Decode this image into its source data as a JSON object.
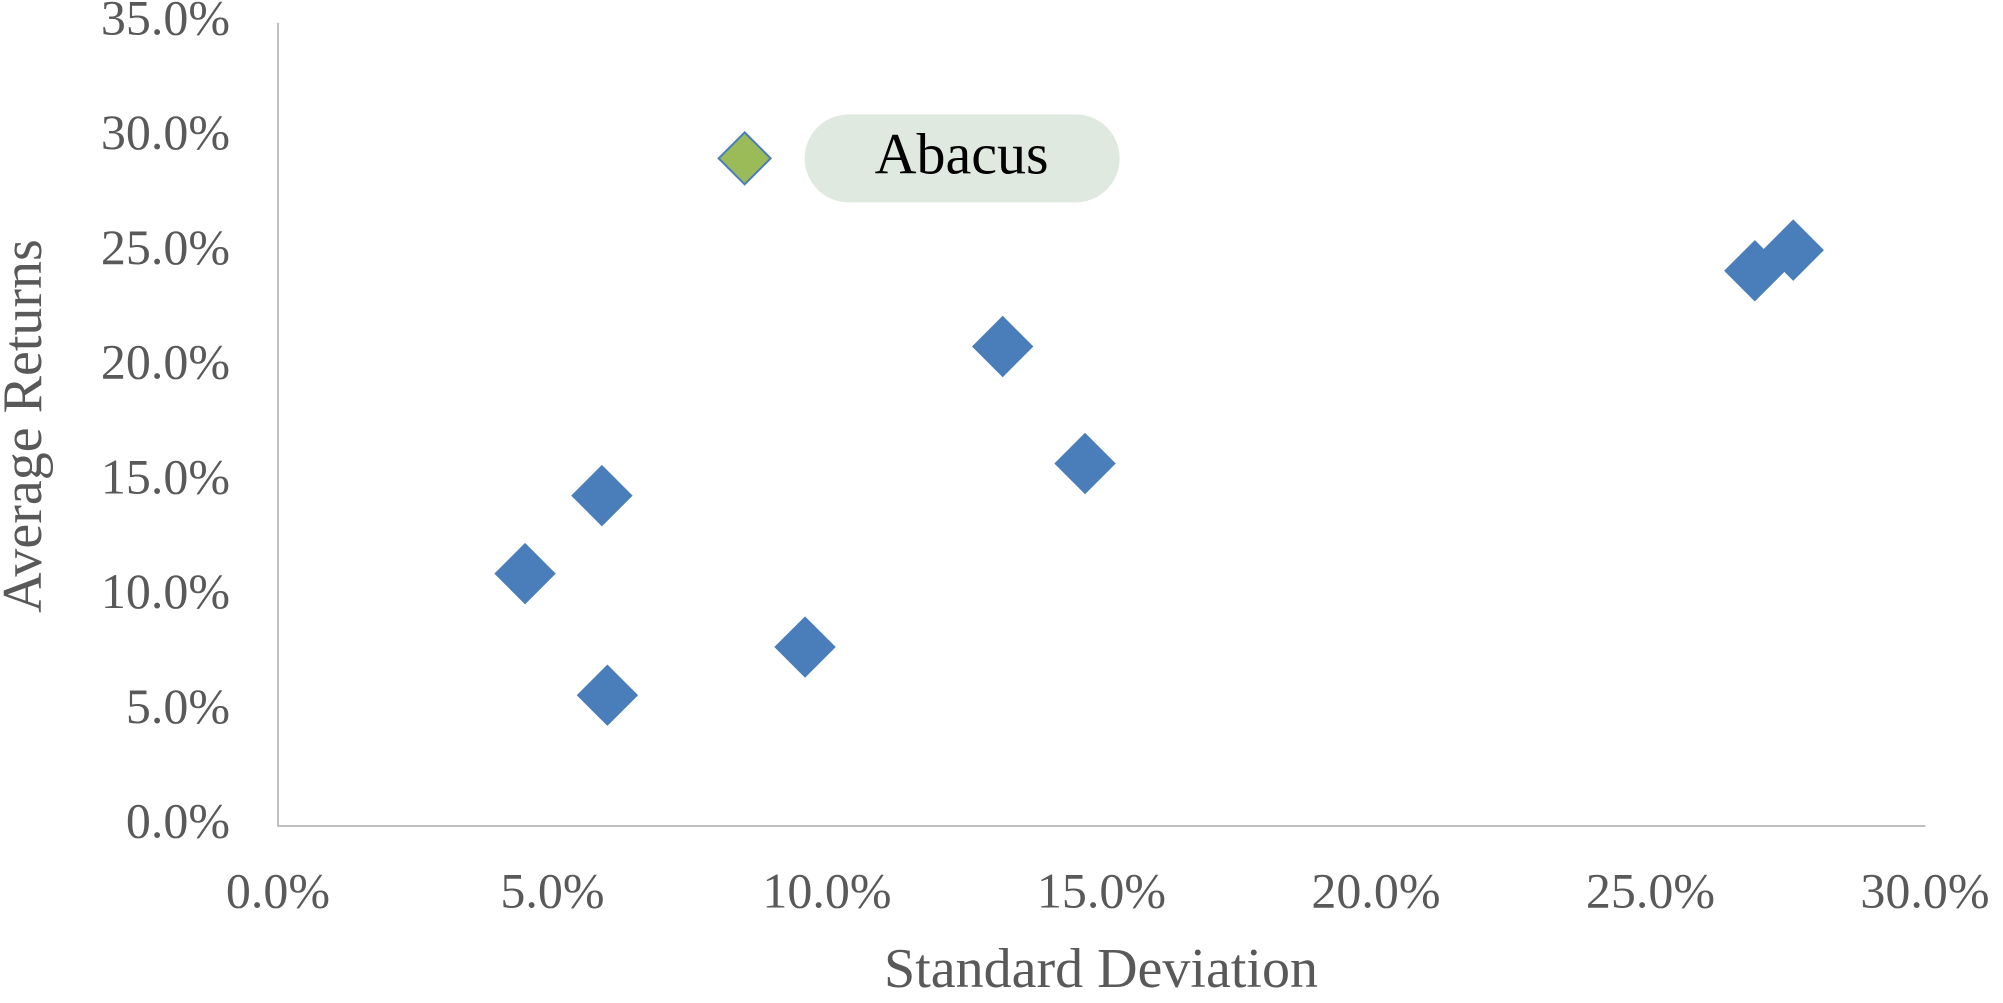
{
  "chart_data": {
    "type": "scatter",
    "x_label": "Standard Deviation",
    "y_label": "Average Returns",
    "series": [
      {
        "color": "#4a7ebb",
        "marker": "diamond",
        "x": [
          4.5,
          5.9,
          6.0,
          9.6,
          13.2,
          14.7,
          26.9,
          27.6
        ],
        "y": [
          11.0,
          14.4,
          5.7,
          7.8,
          20.9,
          15.8,
          24.2,
          25.1
        ]
      },
      {
        "name": "Abacus",
        "color": "#9bbb59",
        "marker": "diamond",
        "x": [
          8.5
        ],
        "y": [
          29.1
        ]
      }
    ],
    "xlim": [
      0,
      30
    ],
    "xticks": [
      {
        "value": 0,
        "label": "0.0%"
      },
      {
        "value": 5,
        "label": "5.0%"
      },
      {
        "value": 10,
        "label": "10.0%"
      },
      {
        "value": 15,
        "label": "15.0%"
      },
      {
        "value": 20,
        "label": "20.0%"
      },
      {
        "value": 25,
        "label": "25.0%"
      },
      {
        "value": 30,
        "label": "30.0%"
      }
    ],
    "ylim": [
      0,
      35
    ],
    "yticks": [
      {
        "value": 0,
        "label": "0.0%"
      },
      {
        "value": 5,
        "label": "5.0%"
      },
      {
        "value": 10,
        "label": "10.0%"
      },
      {
        "value": 15,
        "label": "15.0%"
      },
      {
        "value": 20,
        "label": "20.0%"
      },
      {
        "value": 25,
        "label": "25.0%"
      },
      {
        "value": 30,
        "label": "30.0%"
      },
      {
        "value": 35,
        "label": "35.0%"
      }
    ],
    "grid": false
  }
}
